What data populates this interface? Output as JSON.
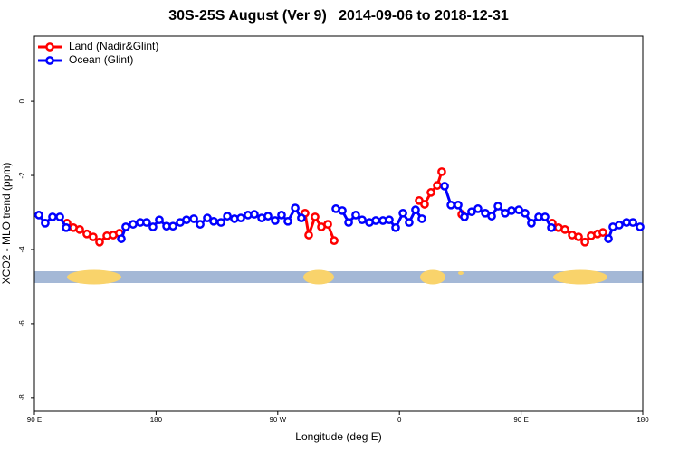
{
  "chart_data": {
    "type": "line",
    "title": "30S-25S August (Ver 9)   2014-09-06 to 2018-12-31",
    "x_label": "Longitude (deg E)",
    "y_label": "XCO2 - MLO trend (ppm)",
    "xlim": [
      90,
      540
    ],
    "ylim": [
      1.76,
      -8.37
    ],
    "xticks": [
      {
        "value": 90,
        "label": "90 E"
      },
      {
        "value": 180,
        "label": "180"
      },
      {
        "value": 270,
        "label": "90 W"
      },
      {
        "value": 360,
        "label": "0"
      },
      {
        "value": 450,
        "label": "90 E"
      },
      {
        "value": 540,
        "label": "180"
      }
    ],
    "yticks": [
      0,
      -2,
      -4,
      -6,
      -8
    ],
    "legend": "topleft",
    "series": [
      {
        "name": "Land (Nadir&Glint)",
        "color": "#ff0000",
        "x": [
          114.1,
          118.8,
          123.5,
          128.8,
          133.5,
          138.2,
          143.6,
          148.3,
          152.9,
          220,
          290.2,
          292.9,
          297.6,
          302.3,
          307.0,
          311.7,
          340,
          374.6,
          378.6,
          383.3,
          388.0,
          391.3,
          400,
          406.1,
          440,
          473.0,
          477.7,
          482.4,
          487.8,
          492.5,
          497.2,
          501.8,
          506.5,
          510.5
        ],
        "values": [
          -3.29,
          -3.41,
          -3.46,
          -3.58,
          -3.66,
          -3.8,
          -3.63,
          -3.61,
          -3.56,
          null,
          -3.02,
          -3.61,
          -3.12,
          -3.39,
          -3.32,
          -3.76,
          null,
          -2.68,
          -2.78,
          -2.46,
          -2.27,
          -1.9,
          null,
          -3.05,
          null,
          -3.29,
          -3.41,
          -3.46,
          -3.61,
          -3.66,
          -3.8,
          -3.63,
          -3.58,
          -3.54
        ]
      },
      {
        "name": "Ocean (Glint)",
        "color": "#0000ff",
        "x": [
          93.3,
          98.0,
          103.4,
          108.8,
          113.5,
          130,
          154.3,
          157.6,
          163.0,
          168.3,
          173.0,
          177.7,
          182.4,
          187.8,
          192.5,
          197.8,
          202.5,
          207.9,
          212.6,
          217.9,
          222.6,
          228.0,
          232.7,
          238.0,
          242.7,
          248.0,
          252.7,
          258.1,
          262.8,
          268.1,
          272.8,
          277.5,
          282.9,
          287.5,
          300,
          313.0,
          317.7,
          322.4,
          327.7,
          332.4,
          337.8,
          342.5,
          347.8,
          352.5,
          357.2,
          362.6,
          367.2,
          371.9,
          376.6,
          385,
          393.4,
          398.1,
          403.4,
          408.1,
          413.4,
          418.1,
          423.5,
          428.2,
          432.9,
          438.2,
          442.9,
          448.3,
          452.9,
          457.6,
          463.0,
          467.7,
          472.4,
          490,
          514.6,
          517.9,
          522.6,
          528.0,
          532.7,
          538.0
        ],
        "values": [
          -3.07,
          -3.29,
          -3.12,
          -3.12,
          -3.41,
          null,
          -3.71,
          -3.39,
          -3.32,
          -3.27,
          -3.27,
          -3.39,
          -3.2,
          -3.37,
          -3.37,
          -3.27,
          -3.2,
          -3.17,
          -3.32,
          -3.15,
          -3.24,
          -3.27,
          -3.1,
          -3.17,
          -3.15,
          -3.07,
          -3.05,
          -3.15,
          -3.1,
          -3.22,
          -3.07,
          -3.24,
          -2.88,
          -3.15,
          null,
          -2.9,
          -2.95,
          -3.27,
          -3.07,
          -3.2,
          -3.27,
          -3.22,
          -3.22,
          -3.2,
          -3.41,
          -3.02,
          -3.27,
          -2.93,
          -3.17,
          null,
          -2.29,
          -2.8,
          -2.8,
          -3.12,
          -2.98,
          -2.9,
          -3.02,
          -3.1,
          -2.83,
          -3.02,
          -2.95,
          -2.93,
          -3.02,
          -3.29,
          -3.12,
          -3.12,
          -3.41,
          null,
          -3.71,
          -3.39,
          -3.34,
          -3.27,
          -3.27,
          -3.39
        ]
      }
    ]
  }
}
